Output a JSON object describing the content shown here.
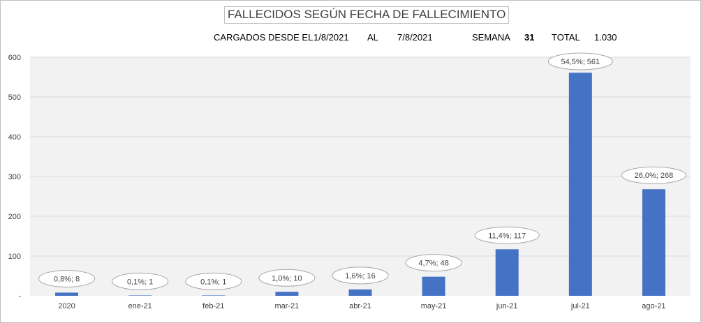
{
  "header": {
    "title": "FALLECIDOS SEGÚN FECHA DE FALLECIMIENTO",
    "loaded_label": "CARGADOS DESDE EL",
    "date_from": "1/8/2021",
    "al_label": "AL",
    "date_to": "7/8/2021",
    "week_label": "SEMANA",
    "week_value": "31",
    "total_label": "TOTAL",
    "total_value": "1.030"
  },
  "colors": {
    "bar": "#4472c4",
    "plot_bg": "#f2f2f2",
    "grid": "#d9d9d9"
  },
  "chart_data": {
    "type": "bar",
    "title": "FALLECIDOS SEGÚN FECHA DE FALLECIMIENTO",
    "categories": [
      "2020",
      "ene-21",
      "feb-21",
      "mar-21",
      "abr-21",
      "may-21",
      "jun-21",
      "jul-21",
      "ago-21"
    ],
    "values": [
      8,
      1,
      1,
      10,
      16,
      48,
      117,
      561,
      268
    ],
    "data_labels": [
      "0,8%; 8",
      "0,1%; 1",
      "0,1%; 1",
      "1,0%; 10",
      "1,6%; 16",
      "4,7%; 48",
      "11,4%; 117",
      "54,5%; 561",
      "26,0%; 268"
    ],
    "y_ticks": [
      "-",
      "100",
      "200",
      "300",
      "400",
      "500",
      "600"
    ],
    "ylim": [
      0,
      600
    ],
    "grid": true,
    "legend": "none",
    "xlabel": "",
    "ylabel": ""
  }
}
